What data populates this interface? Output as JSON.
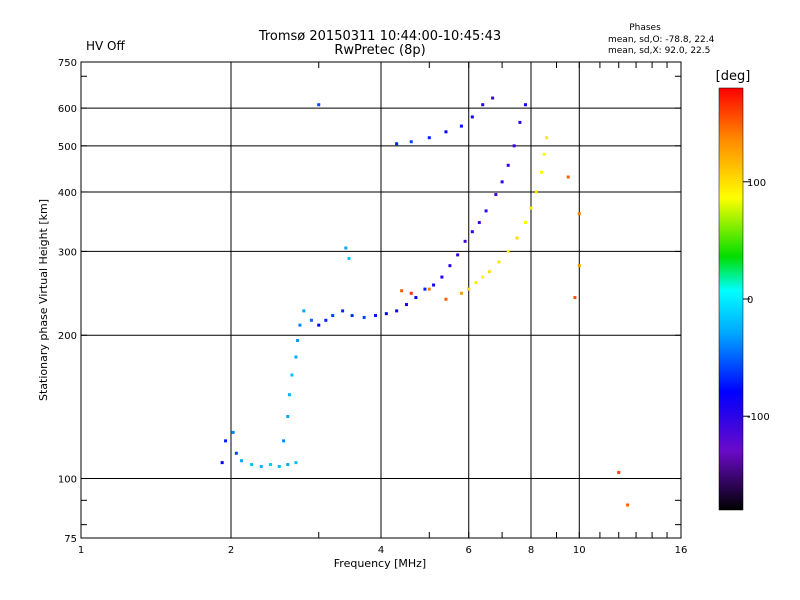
{
  "header": {
    "status": "HV Off",
    "title_line1": "Tromsø 20150311 10:44:00-10:45:43",
    "title_line2": "RwPretec (8p)",
    "phase_title": "Phases",
    "phase_o": "mean, sd,O: -78.8, 22.4",
    "phase_x": "mean, sd,X:  92.0, 22.5"
  },
  "colors": {
    "status": "#dd0000",
    "grid": "#000000"
  },
  "chart_data": {
    "type": "scatter",
    "title": "Tromsø 20150311 10:44:00-10:45:43",
    "subtitle": "RwPretec (8p)",
    "xlabel": "Frequency [MHz]",
    "ylabel": "Stationary phase Virtual Height [km]",
    "x_scale": "log",
    "y_scale": "log",
    "xlim": [
      1,
      16
    ],
    "ylim": [
      75,
      750
    ],
    "x_ticks": [
      1,
      2,
      4,
      6,
      8,
      10,
      16
    ],
    "y_ticks": [
      75,
      100,
      200,
      300,
      400,
      500,
      600,
      750
    ],
    "grid": true,
    "colorbar": {
      "label": "[deg]",
      "range": [
        -180,
        180
      ],
      "ticks": [
        100,
        0,
        -100
      ]
    },
    "series": [
      {
        "name": "O",
        "mean_phase": -78.8,
        "sd_phase": 22.4,
        "points": [
          {
            "x": 1.92,
            "y": 108,
            "c": -80
          },
          {
            "x": 1.95,
            "y": 120,
            "c": -70
          },
          {
            "x": 2.02,
            "y": 125,
            "c": -40
          },
          {
            "x": 2.05,
            "y": 113,
            "c": -60
          },
          {
            "x": 2.1,
            "y": 109,
            "c": -30
          },
          {
            "x": 2.2,
            "y": 107,
            "c": -20
          },
          {
            "x": 2.3,
            "y": 106,
            "c": -25
          },
          {
            "x": 2.4,
            "y": 107,
            "c": -15
          },
          {
            "x": 2.5,
            "y": 106,
            "c": -20
          },
          {
            "x": 2.6,
            "y": 107,
            "c": -30
          },
          {
            "x": 2.7,
            "y": 108,
            "c": -20
          },
          {
            "x": 2.55,
            "y": 120,
            "c": -40
          },
          {
            "x": 2.6,
            "y": 135,
            "c": -30
          },
          {
            "x": 2.62,
            "y": 150,
            "c": -25
          },
          {
            "x": 2.65,
            "y": 165,
            "c": -20
          },
          {
            "x": 2.7,
            "y": 180,
            "c": -30
          },
          {
            "x": 2.72,
            "y": 195,
            "c": -35
          },
          {
            "x": 2.75,
            "y": 210,
            "c": -40
          },
          {
            "x": 2.8,
            "y": 225,
            "c": -30
          },
          {
            "x": 2.9,
            "y": 215,
            "c": -50
          },
          {
            "x": 3.0,
            "y": 210,
            "c": -80
          },
          {
            "x": 3.1,
            "y": 215,
            "c": -70
          },
          {
            "x": 3.2,
            "y": 220,
            "c": -60
          },
          {
            "x": 3.35,
            "y": 225,
            "c": -70
          },
          {
            "x": 3.5,
            "y": 220,
            "c": -65
          },
          {
            "x": 3.7,
            "y": 218,
            "c": -60
          },
          {
            "x": 3.9,
            "y": 220,
            "c": -75
          },
          {
            "x": 4.1,
            "y": 222,
            "c": -80
          },
          {
            "x": 4.3,
            "y": 225,
            "c": -85
          },
          {
            "x": 4.5,
            "y": 232,
            "c": -90
          },
          {
            "x": 4.7,
            "y": 240,
            "c": -80
          },
          {
            "x": 4.9,
            "y": 250,
            "c": -70
          },
          {
            "x": 5.1,
            "y": 255,
            "c": -90
          },
          {
            "x": 5.3,
            "y": 265,
            "c": -95
          },
          {
            "x": 5.5,
            "y": 280,
            "c": -100
          },
          {
            "x": 5.7,
            "y": 295,
            "c": -105
          },
          {
            "x": 5.9,
            "y": 315,
            "c": -110
          },
          {
            "x": 6.1,
            "y": 330,
            "c": -100
          },
          {
            "x": 6.3,
            "y": 345,
            "c": -110
          },
          {
            "x": 6.5,
            "y": 365,
            "c": -105
          },
          {
            "x": 6.8,
            "y": 395,
            "c": -110
          },
          {
            "x": 7.0,
            "y": 420,
            "c": -100
          },
          {
            "x": 7.2,
            "y": 455,
            "c": -105
          },
          {
            "x": 7.4,
            "y": 500,
            "c": -110
          },
          {
            "x": 7.6,
            "y": 560,
            "c": -100
          },
          {
            "x": 7.8,
            "y": 610,
            "c": -90
          },
          {
            "x": 3.4,
            "y": 305,
            "c": -30
          },
          {
            "x": 3.45,
            "y": 290,
            "c": -20
          },
          {
            "x": 3.0,
            "y": 610,
            "c": -60
          },
          {
            "x": 4.3,
            "y": 505,
            "c": -70
          },
          {
            "x": 4.6,
            "y": 510,
            "c": -60
          },
          {
            "x": 5.0,
            "y": 520,
            "c": -70
          },
          {
            "x": 5.4,
            "y": 535,
            "c": -80
          },
          {
            "x": 5.8,
            "y": 550,
            "c": -75
          },
          {
            "x": 6.1,
            "y": 575,
            "c": -90
          },
          {
            "x": 6.4,
            "y": 610,
            "c": -100
          },
          {
            "x": 6.7,
            "y": 630,
            "c": -110
          }
        ]
      },
      {
        "name": "X",
        "mean_phase": 92.0,
        "sd_phase": 22.5,
        "points": [
          {
            "x": 4.4,
            "y": 248,
            "c": 150
          },
          {
            "x": 4.6,
            "y": 245,
            "c": 165
          },
          {
            "x": 5.0,
            "y": 250,
            "c": 140
          },
          {
            "x": 5.4,
            "y": 238,
            "c": 150
          },
          {
            "x": 5.8,
            "y": 245,
            "c": 130
          },
          {
            "x": 6.0,
            "y": 250,
            "c": 100
          },
          {
            "x": 6.2,
            "y": 258,
            "c": 95
          },
          {
            "x": 6.4,
            "y": 265,
            "c": 90
          },
          {
            "x": 6.6,
            "y": 272,
            "c": 100
          },
          {
            "x": 6.9,
            "y": 285,
            "c": 95
          },
          {
            "x": 7.2,
            "y": 300,
            "c": 90
          },
          {
            "x": 7.5,
            "y": 320,
            "c": 100
          },
          {
            "x": 7.8,
            "y": 345,
            "c": 85
          },
          {
            "x": 8.0,
            "y": 370,
            "c": 95
          },
          {
            "x": 8.2,
            "y": 400,
            "c": 100
          },
          {
            "x": 8.4,
            "y": 440,
            "c": 90
          },
          {
            "x": 8.5,
            "y": 480,
            "c": 85
          },
          {
            "x": 8.6,
            "y": 520,
            "c": 95
          },
          {
            "x": 9.5,
            "y": 430,
            "c": 150
          },
          {
            "x": 10.0,
            "y": 360,
            "c": 140
          },
          {
            "x": 10.0,
            "y": 280,
            "c": 130
          },
          {
            "x": 9.8,
            "y": 240,
            "c": 155
          },
          {
            "x": 12.0,
            "y": 103,
            "c": 160
          },
          {
            "x": 12.5,
            "y": 88,
            "c": 150
          }
        ]
      }
    ]
  }
}
